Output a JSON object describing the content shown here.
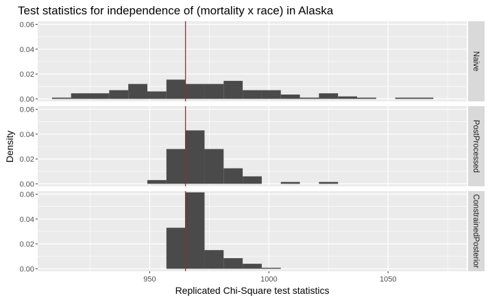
{
  "chart_data": {
    "type": "bar",
    "title": "Test statistics for independence of (mortality x race) in Alaska",
    "xlabel": "Replicated Chi-Square test statistics",
    "ylabel": "Density",
    "xlim": [
      903,
      1083
    ],
    "ylim": [
      -0.002,
      0.0625
    ],
    "x_ticks": [
      {
        "value": 950,
        "label": "950"
      },
      {
        "value": 1000,
        "label": "1000"
      },
      {
        "value": 1050,
        "label": "1050"
      }
    ],
    "y_ticks": [
      {
        "value": 0.0,
        "label": "0.00"
      },
      {
        "value": 0.02,
        "label": "0.02"
      },
      {
        "value": 0.04,
        "label": "0.04"
      },
      {
        "value": 0.06,
        "label": "0.06"
      }
    ],
    "reference_line": {
      "x": 965,
      "color": "#ff0000"
    },
    "colors": {
      "bar": "#4a4a4a",
      "panel_bg": "#ebebeb",
      "grid": "#ffffff",
      "strip_bg": "#d9d9d9"
    },
    "panels": [
      {
        "name": "Naive",
        "bins": [
          {
            "x0": 909,
            "x1": 917,
            "density": 0.001
          },
          {
            "x0": 917,
            "x1": 925,
            "density": 0.0045
          },
          {
            "x0": 925,
            "x1": 933,
            "density": 0.0045
          },
          {
            "x0": 933,
            "x1": 941,
            "density": 0.007
          },
          {
            "x0": 941,
            "x1": 949,
            "density": 0.012
          },
          {
            "x0": 949,
            "x1": 957,
            "density": 0.006
          },
          {
            "x0": 957,
            "x1": 965,
            "density": 0.0155
          },
          {
            "x0": 965,
            "x1": 973,
            "density": 0.012
          },
          {
            "x0": 973,
            "x1": 981,
            "density": 0.012
          },
          {
            "x0": 981,
            "x1": 989,
            "density": 0.0145
          },
          {
            "x0": 989,
            "x1": 997,
            "density": 0.007
          },
          {
            "x0": 997,
            "x1": 1005,
            "density": 0.007
          },
          {
            "x0": 1005,
            "x1": 1013,
            "density": 0.0035
          },
          {
            "x0": 1013,
            "x1": 1021,
            "density": 0.001
          },
          {
            "x0": 1021,
            "x1": 1029,
            "density": 0.0045
          },
          {
            "x0": 1029,
            "x1": 1037,
            "density": 0.002
          },
          {
            "x0": 1037,
            "x1": 1045,
            "density": 0.001
          },
          {
            "x0": 1045,
            "x1": 1053,
            "density": 0.0
          },
          {
            "x0": 1053,
            "x1": 1061,
            "density": 0.001
          },
          {
            "x0": 1061,
            "x1": 1069,
            "density": 0.001
          }
        ]
      },
      {
        "name": "PostProcessed",
        "bins": [
          {
            "x0": 949,
            "x1": 957,
            "density": 0.003
          },
          {
            "x0": 957,
            "x1": 965,
            "density": 0.028
          },
          {
            "x0": 965,
            "x1": 973,
            "density": 0.043
          },
          {
            "x0": 973,
            "x1": 981,
            "density": 0.028
          },
          {
            "x0": 981,
            "x1": 989,
            "density": 0.0125
          },
          {
            "x0": 989,
            "x1": 997,
            "density": 0.006
          },
          {
            "x0": 1005,
            "x1": 1013,
            "density": 0.0015
          },
          {
            "x0": 1021,
            "x1": 1029,
            "density": 0.0015
          }
        ]
      },
      {
        "name": "ConstrainedPosterior",
        "bins": [
          {
            "x0": 957,
            "x1": 965,
            "density": 0.033
          },
          {
            "x0": 965,
            "x1": 973,
            "density": 0.0615
          },
          {
            "x0": 973,
            "x1": 981,
            "density": 0.015
          },
          {
            "x0": 981,
            "x1": 989,
            "density": 0.0085
          },
          {
            "x0": 989,
            "x1": 997,
            "density": 0.004
          },
          {
            "x0": 997,
            "x1": 1005,
            "density": 0.0008
          }
        ]
      }
    ]
  }
}
